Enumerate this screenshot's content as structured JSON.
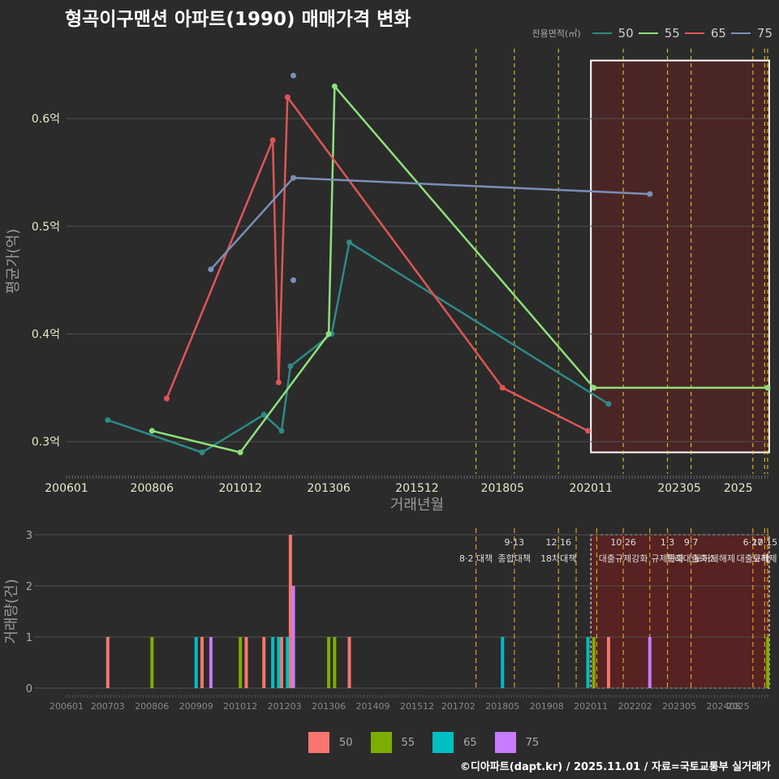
{
  "title": "형곡이구맨션 아파트(1990) 매매가격 변화",
  "footer": "©디아파트(dapt.kr) / 2025.11.01 / 자료=국토교통부 실거래가",
  "colors": {
    "bg": "#2b2b2b",
    "grid": "#505050",
    "text": "#e8e8c8",
    "axis_title": "#9a9a9a",
    "policy_line": "#f0d020",
    "highlight_fill": "#6a2020",
    "line_50": "#2e8b87",
    "line_55": "#8ee07a",
    "line_65": "#e05555",
    "line_75": "#7a8fb8",
    "bar_50": "#f8766d",
    "bar_55": "#7cae00",
    "bar_65": "#00bfc4",
    "bar_75": "#c77cff"
  },
  "legend_top": {
    "title": "전용면적(㎡)",
    "items": [
      {
        "label": "50",
        "color": "#2e8b87"
      },
      {
        "label": "55",
        "color": "#8ee07a"
      },
      {
        "label": "65",
        "color": "#e05555"
      },
      {
        "label": "75",
        "color": "#7a8fb8"
      }
    ]
  },
  "legend_bottom": {
    "items": [
      {
        "label": "50",
        "color": "#f8766d"
      },
      {
        "label": "55",
        "color": "#7cae00"
      },
      {
        "label": "65",
        "color": "#00bfc4"
      },
      {
        "label": "75",
        "color": "#c77cff"
      }
    ]
  },
  "chart_data": [
    {
      "type": "line",
      "xlabel": "거래년월",
      "ylabel": "평균가(억)",
      "xlim": [
        "2006-01",
        "2025-11"
      ],
      "ylim": [
        0.27,
        0.665
      ],
      "xticks": [
        "200601",
        "200806",
        "201012",
        "201306",
        "201512",
        "201805",
        "202011",
        "202305",
        "2025"
      ],
      "yticks": [
        0.3,
        0.4,
        0.5,
        0.6
      ],
      "ytick_labels": [
        "0.3억",
        "0.4억",
        "0.5억",
        "0.6억"
      ],
      "highlight_range": [
        "2020-11",
        "2025-11"
      ],
      "policy_dates": [
        "2017-08",
        "2018-09",
        "2019-12",
        "2021-10",
        "2023-01",
        "2023-09",
        "2025-06",
        "2025-10",
        "2025-11"
      ],
      "series": [
        {
          "name": "50",
          "x": [
            "2007-03",
            "2009-11",
            "2011-08",
            "2012-02",
            "2012-05",
            "2013-07",
            "2014-01",
            "2021-05"
          ],
          "y": [
            0.32,
            0.29,
            0.325,
            0.31,
            0.37,
            0.4,
            0.485,
            0.335
          ]
        },
        {
          "name": "55",
          "x": [
            "2008-06",
            "2010-12",
            "2013-06",
            "2013-08",
            "2020-12",
            "2025-11"
          ],
          "y": [
            0.31,
            0.29,
            0.4,
            0.63,
            0.35,
            0.35
          ]
        },
        {
          "name": "65",
          "x": [
            "2008-11",
            "2011-11",
            "2012-01",
            "2012-04",
            "2018-05",
            "2020-10"
          ],
          "y": [
            0.34,
            0.58,
            0.355,
            0.62,
            0.35,
            0.31
          ]
        },
        {
          "name": "75",
          "x": [
            "2010-02",
            "2012-06",
            "2022-07"
          ],
          "y": [
            0.46,
            0.545,
            0.53
          ]
        }
      ],
      "extra_points": [
        {
          "name": "75",
          "x": "2012-06",
          "y": 0.64
        },
        {
          "name": "75",
          "x": "2012-06",
          "y": 0.45
        }
      ]
    },
    {
      "type": "bar",
      "xlabel": "",
      "ylabel": "거래량(건)",
      "xlim": [
        "2006-01",
        "2025-11"
      ],
      "ylim": [
        0,
        3
      ],
      "yticks": [
        0,
        1,
        2,
        3
      ],
      "xticks": [
        "200601",
        "200703",
        "200806",
        "200909",
        "201012",
        "201203",
        "201306",
        "201409",
        "201512",
        "201702",
        "201805",
        "201908",
        "202011",
        "202202",
        "202305",
        "202408",
        "2025"
      ],
      "highlight_range": [
        "2020-11",
        "2025-11"
      ],
      "policy_dates": [
        "2017-08",
        "2018-09",
        "2019-12",
        "2020-06",
        "2021-01",
        "2021-10",
        "2022-07",
        "2023-01",
        "2023-09",
        "2025-06",
        "2025-10",
        "2025-11"
      ],
      "policy_labels": [
        {
          "date": "2017-08",
          "top": "",
          "bottom": "8·2 대책"
        },
        {
          "date": "2018-09",
          "top": "9·13",
          "bottom": "종합대책"
        },
        {
          "date": "2019-12",
          "top": "12·16",
          "bottom": "18차대책"
        },
        {
          "date": "2021-10",
          "top": "10·26",
          "bottom": "대출규제강화"
        },
        {
          "date": "2023-01",
          "top": "1·3",
          "bottom": "규제완화"
        },
        {
          "date": "2023-09",
          "top": "9·7",
          "bottom": "특례대출축소"
        },
        {
          "date": "2024-05",
          "top": "",
          "bottom": "토허제해제"
        },
        {
          "date": "2025-06",
          "top": "6·27",
          "bottom": "대출규제"
        },
        {
          "date": "2025-10",
          "top": "10·15",
          "bottom": "토허제"
        }
      ],
      "series": [
        {
          "name": "50",
          "x": [
            "2007-03",
            "2009-11",
            "2011-02",
            "2011-08",
            "2012-02",
            "2012-05",
            "2014-01",
            "2021-05"
          ],
          "y": [
            1,
            1,
            1,
            1,
            1,
            3,
            1,
            1
          ]
        },
        {
          "name": "55",
          "x": [
            "2008-06",
            "2010-12",
            "2013-06",
            "2013-08",
            "2020-12",
            "2025-11"
          ],
          "y": [
            1,
            1,
            1,
            1,
            1,
            1
          ]
        },
        {
          "name": "65",
          "x": [
            "2009-09",
            "2011-11",
            "2012-01",
            "2012-04",
            "2018-05",
            "2020-10"
          ],
          "y": [
            1,
            1,
            1,
            1,
            1,
            1
          ]
        },
        {
          "name": "75",
          "x": [
            "2010-02",
            "2012-06",
            "2022-07"
          ],
          "y": [
            1,
            2,
            1
          ]
        }
      ]
    }
  ]
}
